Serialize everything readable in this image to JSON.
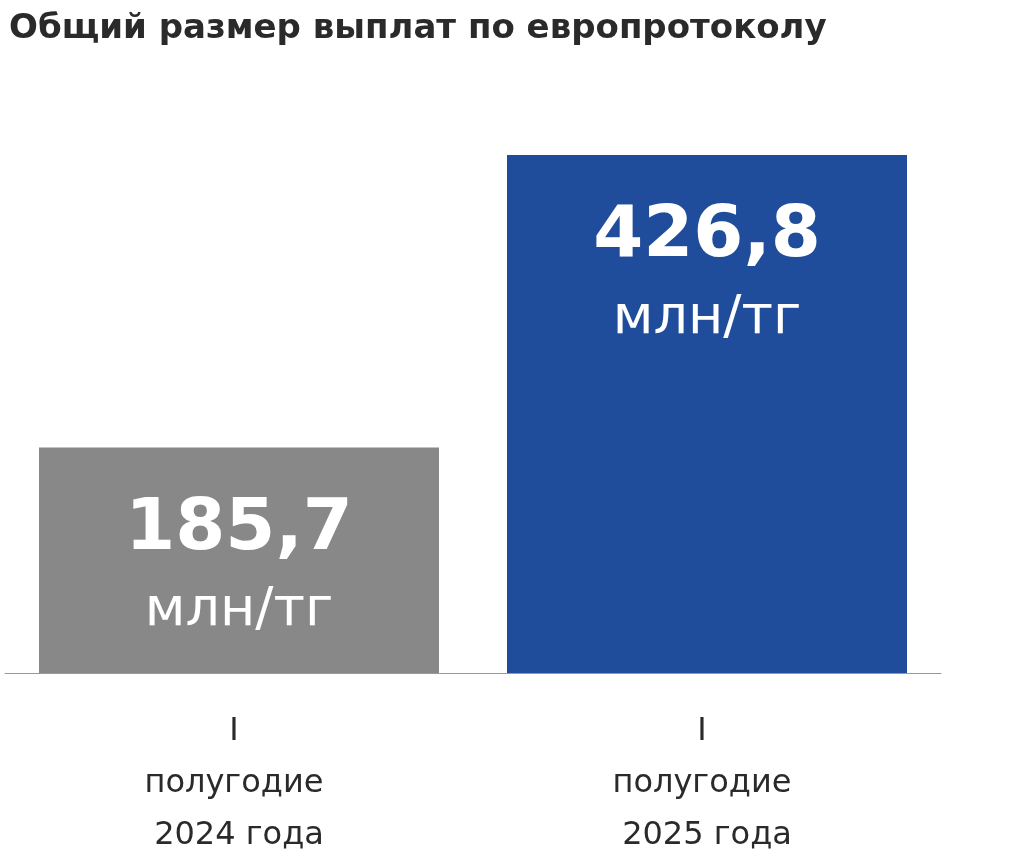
{
  "chart_data": {
    "type": "bar",
    "title": "Общий размер выплат по европротоколу",
    "categories": [
      "I полугодие 2024 года",
      "I полугодие 2025 года"
    ],
    "values": [
      185.7,
      426.8
    ],
    "colors": [
      "#888888",
      "#1f4d9b"
    ],
    "value_labels": [
      "185,7 млн/тг",
      "426,8 млн/тг"
    ]
  }
}
